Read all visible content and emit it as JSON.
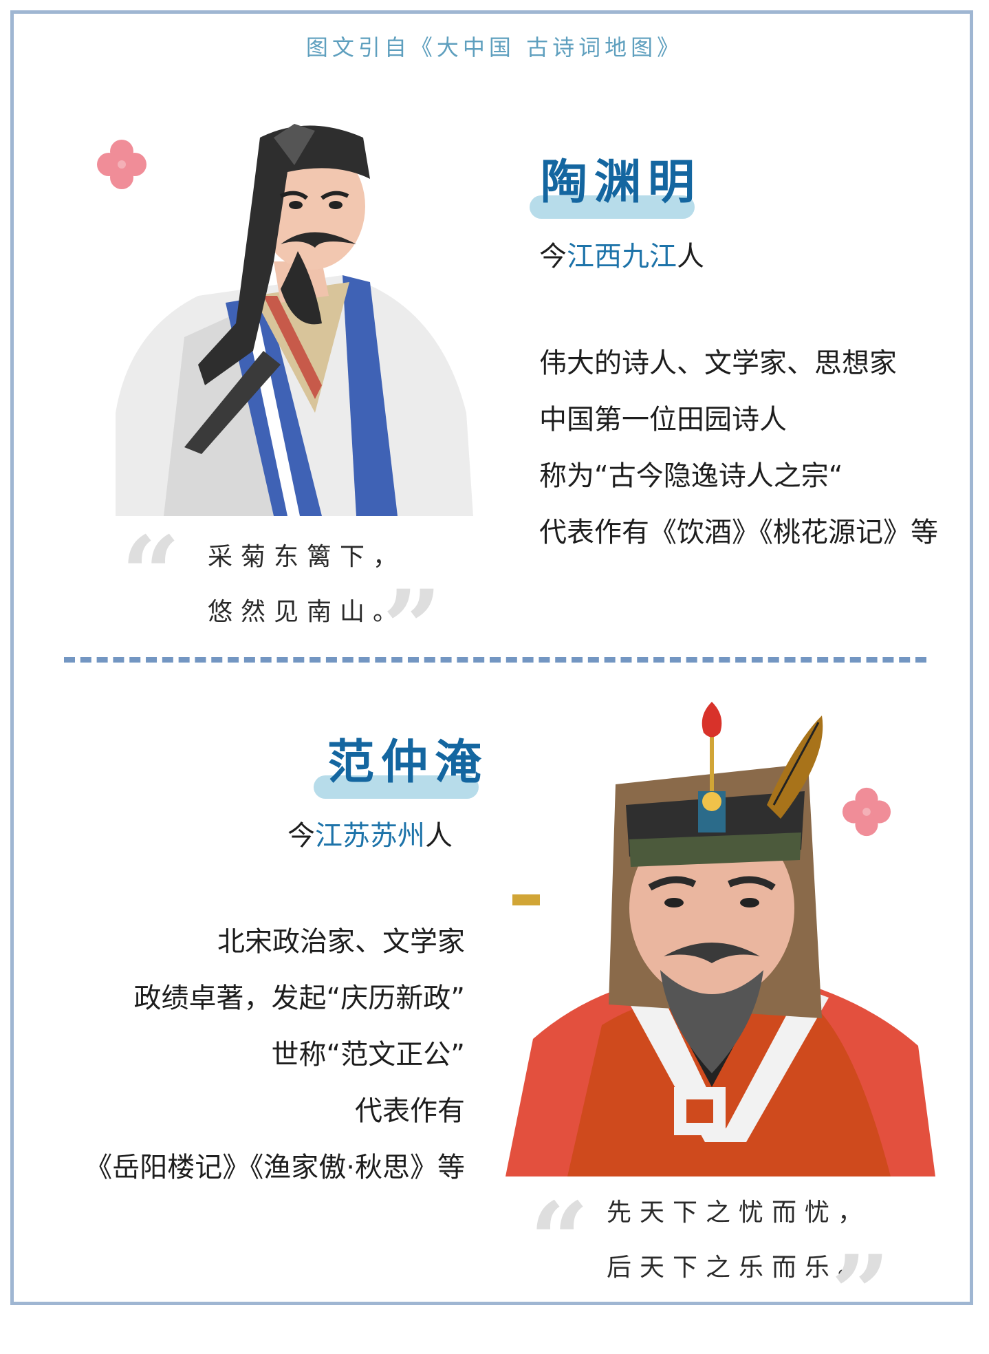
{
  "source_line": "图文引自《大中国 古诗词地图》",
  "poets": [
    {
      "name": "陶渊明",
      "origin_prefix": "今",
      "origin_place": "江西九江",
      "origin_suffix": "人",
      "description": [
        "伟大的诗人、文学家、思想家",
        "中国第一位田园诗人",
        "称为“古今隐逸诗人之宗“",
        "代表作有《饮酒》《桃花源记》等"
      ],
      "quote": [
        "采菊东篱下，",
        "悠然见南山。"
      ]
    },
    {
      "name": "范仲淹",
      "origin_prefix": "今",
      "origin_place": "江苏苏州",
      "origin_suffix": "人",
      "description": [
        "北宋政治家、文学家",
        "政绩卓著，发起“庆历新政”",
        "世称“范文正公”",
        "代表作有",
        "《岳阳楼记》《渔家傲·秋思》等"
      ],
      "quote": [
        "先天下之忧而忧，",
        "后天下之乐而乐。"
      ]
    }
  ],
  "colors": {
    "frame": "#9fb6d2",
    "name": "#1466a0",
    "name_highlight": "#b7dcea",
    "place": "#1d73a9",
    "divider": "#7396c2",
    "flower": "#f08d98"
  },
  "icons": {
    "flower": "four-petal-flower-icon",
    "quote_open": "quote-open-icon",
    "quote_close": "quote-close-icon"
  }
}
